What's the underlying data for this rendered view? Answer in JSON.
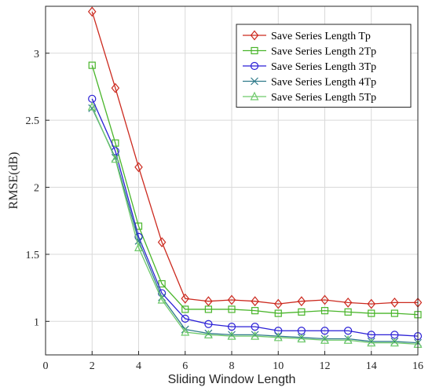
{
  "chart_data": {
    "type": "line",
    "xlabel": "Sliding Window Length",
    "ylabel": "RMSE(dB)",
    "xlim": [
      0,
      16
    ],
    "ylim": [
      0.75,
      3.35
    ],
    "xticks": [
      0,
      2,
      4,
      6,
      8,
      10,
      12,
      14,
      16
    ],
    "yticks": [
      1,
      1.5,
      2,
      2.5,
      3
    ],
    "ytick_labels": [
      "1",
      "1.5",
      "2",
      "2.5",
      "3"
    ],
    "grid": true,
    "legend_position": "top-right",
    "x": [
      2,
      3,
      4,
      5,
      6,
      7,
      8,
      9,
      10,
      11,
      12,
      13,
      14,
      15,
      16
    ],
    "series": [
      {
        "name": "Save Series Length Tp",
        "color": "#cc2a1f",
        "marker": "diamond",
        "values": [
          3.31,
          2.74,
          2.15,
          1.59,
          1.17,
          1.15,
          1.16,
          1.15,
          1.13,
          1.15,
          1.16,
          1.14,
          1.13,
          1.14,
          1.14
        ]
      },
      {
        "name": "Save Series Length 2Tp",
        "color": "#49b52a",
        "marker": "square",
        "values": [
          2.91,
          2.33,
          1.71,
          1.28,
          1.09,
          1.09,
          1.09,
          1.08,
          1.06,
          1.07,
          1.08,
          1.07,
          1.06,
          1.06,
          1.05
        ]
      },
      {
        "name": "Save Series Length 3Tp",
        "color": "#2a1fd6",
        "marker": "circle",
        "values": [
          2.66,
          2.27,
          1.63,
          1.21,
          1.02,
          0.98,
          0.96,
          0.96,
          0.93,
          0.93,
          0.93,
          0.93,
          0.9,
          0.9,
          0.89
        ]
      },
      {
        "name": "Save Series Length 4Tp",
        "color": "#2f7a8a",
        "marker": "x",
        "values": [
          2.59,
          2.22,
          1.6,
          1.18,
          0.94,
          0.91,
          0.9,
          0.9,
          0.89,
          0.88,
          0.87,
          0.87,
          0.85,
          0.85,
          0.84
        ]
      },
      {
        "name": "Save Series Length 5Tp",
        "color": "#6ec96a",
        "marker": "triangle",
        "values": [
          2.6,
          2.21,
          1.55,
          1.16,
          0.92,
          0.9,
          0.89,
          0.89,
          0.88,
          0.87,
          0.86,
          0.86,
          0.84,
          0.84,
          0.83
        ]
      }
    ]
  }
}
